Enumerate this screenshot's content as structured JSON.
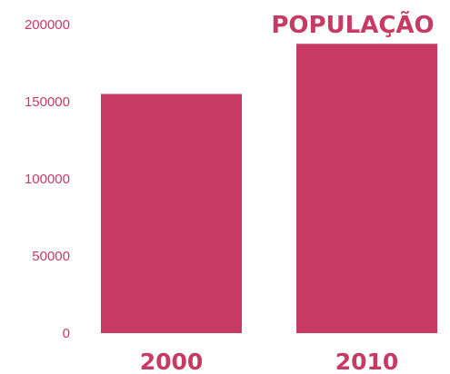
{
  "chart_data": {
    "type": "bar",
    "title": "POPULAÇÃO",
    "categories": [
      "2000",
      "2010"
    ],
    "values": [
      155000,
      187500
    ],
    "yticks": [
      "0",
      "50000",
      "100000",
      "150000",
      "200000"
    ],
    "ylim": [
      0,
      200000
    ],
    "grid": false,
    "bar_color": "#c63a63",
    "text_color": "#c63a63"
  }
}
